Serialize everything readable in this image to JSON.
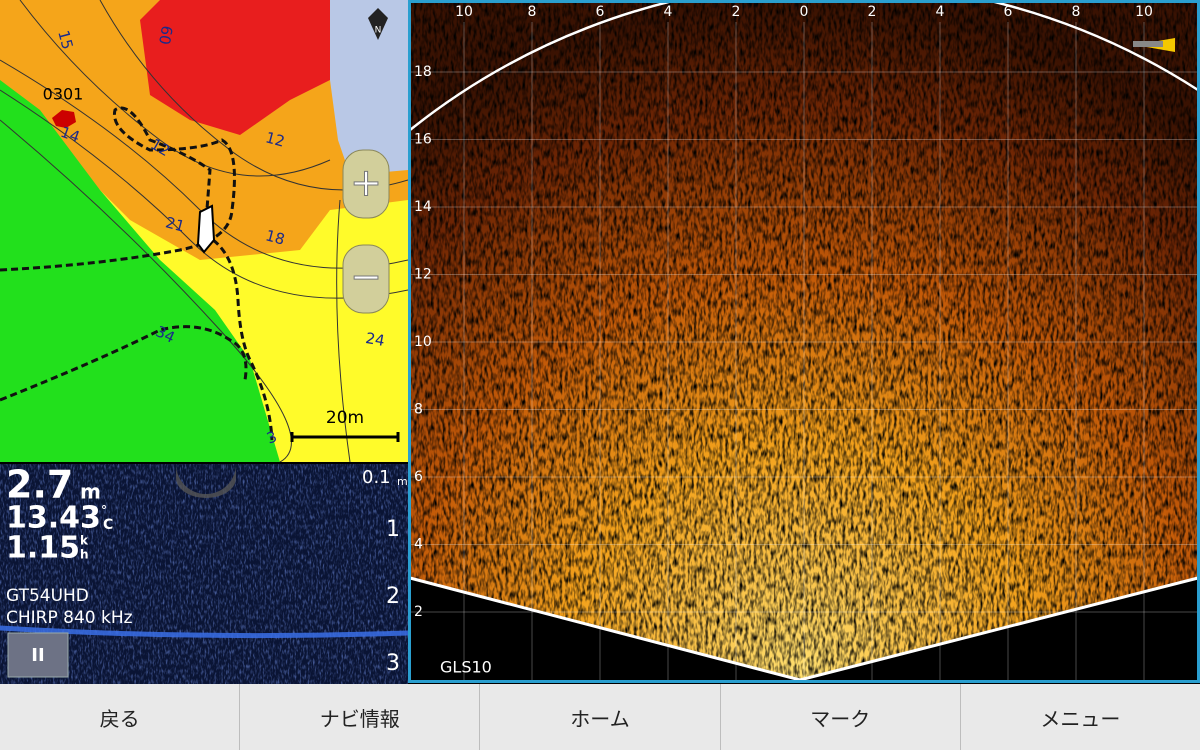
{
  "map": {
    "north": "N",
    "waypoint": "0301",
    "contours": [
      "15",
      "60",
      "14",
      "12",
      "12",
      "21",
      "18",
      "34",
      "24",
      "3"
    ],
    "scale": "20m",
    "zoom_in": "+",
    "zoom_out": "−"
  },
  "sounder": {
    "depth": "2.7",
    "depth_unit": "m",
    "temperature": "13.43",
    "temperature_unit_top": "°",
    "temperature_unit_bottom": "C",
    "speed": "1.15",
    "speed_unit_top": "k",
    "speed_unit_bottom": "h",
    "range_top": "0.1",
    "range_unit": "m",
    "depth_scale": [
      "1",
      "2",
      "3"
    ],
    "model": "GT54UHD",
    "mode": "CHIRP 840 kHz",
    "pause": "II"
  },
  "sonar": {
    "x_labels": [
      10,
      8,
      6,
      4,
      2,
      0,
      2,
      4,
      6,
      8,
      10
    ],
    "y_labels": [
      18,
      16,
      14,
      12,
      10,
      8,
      6,
      4,
      2
    ],
    "model": "GLS10"
  },
  "nav_buttons": [
    "戻る",
    "ナビ情報",
    "ホーム",
    "マーク",
    "メニュー"
  ]
}
